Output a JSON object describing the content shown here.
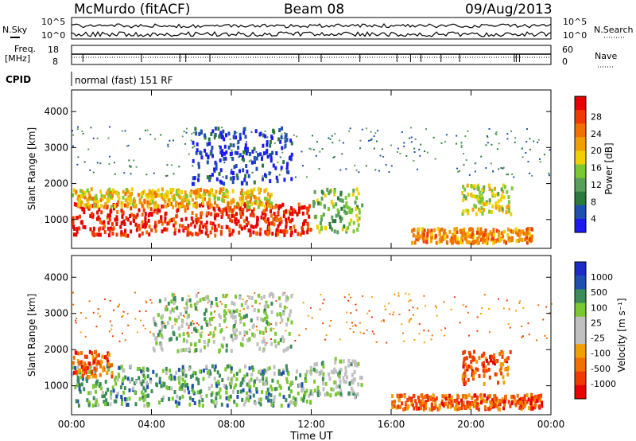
{
  "header": {
    "station": "McMurdo (fitACF)",
    "beam": "Beam 08",
    "date": "09/Aug/2013"
  },
  "status_panel": {
    "nsky_label": "N.Sky",
    "nsearch_label": "N.Search",
    "noise_ticks_left": [
      "10^5",
      "10^0"
    ],
    "noise_ticks_right": [
      "10^5",
      "10^0"
    ],
    "freq_label_1": "Freq.",
    "freq_label_2": "[MHz]",
    "freq_ticks": [
      "18",
      "8"
    ],
    "nave_label": "Nave",
    "nave_ticks": [
      "60",
      "0"
    ],
    "cpid_label": "CPID",
    "cpid_text": "normal (fast) 151 RF"
  },
  "colors": {
    "power_scale": [
      "#1c1cf0",
      "#1f4fb0",
      "#2c7a3c",
      "#5aa05a",
      "#7ac832",
      "#f0d000",
      "#f0a000",
      "#f07000",
      "#f03a00",
      "#e80000"
    ],
    "velocity_scale": [
      "#e80000",
      "#f03a00",
      "#f07000",
      "#f0a000",
      "#c0c0c0",
      "#c0c0c0",
      "#7ac832",
      "#3c8c5a",
      "#1f4fb0",
      "#1c2cc8"
    ]
  },
  "chart_data": [
    {
      "type": "heatmap",
      "name": "power",
      "title": "",
      "ylabel": "Slant Range [km]",
      "xlabel": "",
      "ylim": [
        200,
        4600
      ],
      "yticks": [
        "4000",
        "3000",
        "2000",
        "1000"
      ],
      "xticks": [
        "00:00",
        "04:00",
        "08:00",
        "12:00",
        "16:00",
        "20:00",
        "00:00"
      ],
      "colorbar": {
        "label": "Power [dB]",
        "ticks": [
          "28",
          "24",
          "20",
          "16",
          "12",
          "8",
          "4"
        ]
      },
      "regions": [
        {
          "x0": 0.0,
          "x1": 12.0,
          "r0": 600,
          "r1": 1500,
          "level": 9
        },
        {
          "x0": 0.0,
          "x1": 10.0,
          "r0": 1400,
          "r1": 1900,
          "level": 6
        },
        {
          "x0": 12.0,
          "x1": 14.5,
          "r0": 700,
          "r1": 1900,
          "level": 4
        },
        {
          "x0": 19.5,
          "x1": 22.0,
          "r0": 1200,
          "r1": 2000,
          "level": 5
        },
        {
          "x0": 17.0,
          "x1": 23.0,
          "r0": 400,
          "r1": 800,
          "level": 7
        },
        {
          "x0": 6.0,
          "x1": 11.0,
          "r0": 2000,
          "r1": 3600,
          "level": 1
        }
      ]
    },
    {
      "type": "heatmap",
      "name": "velocity",
      "title": "",
      "ylabel": "Slant Range [km]",
      "xlabel": "Time UT",
      "ylim": [
        200,
        4600
      ],
      "yticks": [
        "4000",
        "3000",
        "2000",
        "1000"
      ],
      "xticks": [
        "00:00",
        "04:00",
        "08:00",
        "12:00",
        "16:00",
        "20:00",
        "00:00"
      ],
      "colorbar": {
        "label": "Velocity [m s⁻¹]",
        "ticks": [
          "1000",
          "500",
          "100",
          "25",
          "-25",
          "-100",
          "-500",
          "-1000"
        ]
      },
      "regions": [
        {
          "x0": 0.0,
          "x1": 12.0,
          "r0": 500,
          "r1": 1600,
          "level": 7
        },
        {
          "x0": 0.0,
          "x1": 2.0,
          "r0": 1300,
          "r1": 2000,
          "level": 2
        },
        {
          "x0": 12.0,
          "x1": 14.5,
          "r0": 700,
          "r1": 1800,
          "level": 6
        },
        {
          "x0": 19.5,
          "x1": 22.0,
          "r0": 1100,
          "r1": 2000,
          "level": 2
        },
        {
          "x0": 16.0,
          "x1": 23.5,
          "r0": 400,
          "r1": 800,
          "level": 2
        },
        {
          "x0": 4.0,
          "x1": 11.0,
          "r0": 2000,
          "r1": 3600,
          "level": 6
        }
      ]
    }
  ]
}
